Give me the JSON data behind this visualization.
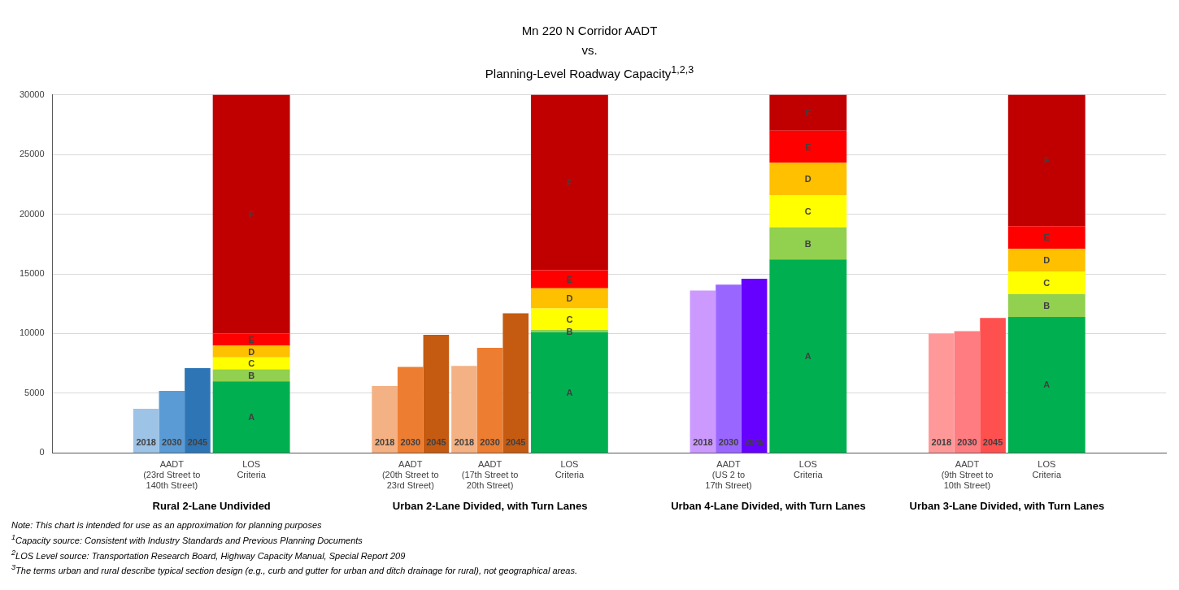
{
  "chart_data": {
    "type": "bar",
    "title": "Mn 220 N Corridor AADT\nvs.\nPlanning-Level Roadway Capacity$^{1,2,3}$",
    "categories": [
      null,
      "AADT\n(23rd Street to\n140th Street)",
      "LOS\nCriteria",
      null,
      "AADT\n(20th Street to\n23rd Street)",
      "AADT\n(17th Street to\n20th Street)",
      "LOS\nCriteria",
      null,
      "AADT\n(US 2 to\n17th Street)",
      "LOS\nCriteria",
      null,
      "AADT\n(9th Street to\n10th Street)",
      "LOS\nCriteria",
      null
    ],
    "series": [
      {
        "name": "2018",
        "values": [
          null,
          3700,
          null,
          null,
          5600,
          7300,
          null,
          null,
          13600,
          null,
          null,
          10000,
          null,
          null
        ],
        "colors": [
          null,
          "#9dc3e6",
          null,
          null,
          "#f4b183",
          "#f4b183",
          null,
          null,
          "#cc99ff",
          null,
          null,
          "#ff9999",
          null,
          null
        ]
      },
      {
        "name": "2030",
        "values": [
          null,
          5200,
          null,
          null,
          7200,
          8800,
          null,
          null,
          14100,
          null,
          null,
          10200,
          null,
          null
        ],
        "colors": [
          null,
          "#5b9bd5",
          null,
          null,
          "#ed7d31",
          "#ed7d31",
          null,
          null,
          "#9966ff",
          null,
          null,
          "#ff7c80",
          null,
          null
        ]
      },
      {
        "name": "2045",
        "values": [
          null,
          7100,
          null,
          null,
          9900,
          11700,
          null,
          null,
          14600,
          null,
          null,
          11300,
          null,
          null
        ],
        "colors": [
          null,
          "#2e75b6",
          null,
          null,
          "#c55a11",
          "#c55a11",
          null,
          null,
          "#6600ff",
          null,
          null,
          "#ff5050",
          null,
          null
        ]
      },
      {
        "name": "A",
        "color": "#00b050",
        "values": [
          null,
          null,
          6000,
          null,
          null,
          null,
          10100,
          null,
          null,
          16200,
          null,
          null,
          11400,
          null
        ],
        "base": [
          null,
          null,
          0,
          null,
          null,
          null,
          0,
          null,
          null,
          0,
          null,
          null,
          0,
          null
        ]
      },
      {
        "name": "B",
        "color": "#92d050",
        "values": [
          null,
          null,
          1000,
          null,
          null,
          null,
          200,
          null,
          null,
          2700,
          null,
          null,
          1900,
          null
        ],
        "base": [
          null,
          null,
          6000,
          null,
          null,
          null,
          10100,
          null,
          null,
          16200,
          null,
          null,
          11400,
          null
        ]
      },
      {
        "name": "C",
        "color": "#ffff00",
        "values": [
          null,
          null,
          1000,
          null,
          null,
          null,
          1800,
          null,
          null,
          2700,
          null,
          null,
          1900,
          null
        ],
        "base": [
          null,
          null,
          7000,
          null,
          null,
          null,
          10300,
          null,
          null,
          18900,
          null,
          null,
          13300,
          null
        ]
      },
      {
        "name": "D",
        "color": "#ffc000",
        "values": [
          null,
          null,
          1000,
          null,
          null,
          null,
          1700,
          null,
          null,
          2700,
          null,
          null,
          1900,
          null
        ],
        "base": [
          null,
          null,
          8000,
          null,
          null,
          null,
          12100,
          null,
          null,
          21600,
          null,
          null,
          15200,
          null
        ]
      },
      {
        "name": "E",
        "color": "#ff0000",
        "values": [
          null,
          null,
          1000,
          null,
          null,
          null,
          1500,
          null,
          null,
          2700,
          null,
          null,
          1900,
          null
        ],
        "base": [
          null,
          null,
          9000,
          null,
          null,
          null,
          13800,
          null,
          null,
          24300,
          null,
          null,
          17100,
          null
        ]
      },
      {
        "name": "F",
        "color": "#c00000",
        "values": [
          null,
          null,
          20000,
          null,
          null,
          null,
          14700,
          null,
          null,
          3000,
          null,
          null,
          11000,
          null
        ],
        "base": [
          null,
          null,
          10000,
          null,
          null,
          null,
          15300,
          null,
          null,
          27000,
          null,
          null,
          19000,
          null
        ]
      }
    ],
    "ylim": [
      0,
      30000
    ],
    "yticks": [
      0,
      5000,
      10000,
      15000,
      20000,
      25000,
      30000
    ],
    "grid": "y",
    "legend": false,
    "annotations": [
      "Rural 2-Lane Undivided",
      "Urban 2-Lane Divided, with Turn Lanes",
      "Urban 4-Lane Divided, with Turn Lanes",
      "Urban 3-Lane Divided, with Turn Lanes",
      "Note: This chart is intended for use as an approximation for planning purposes",
      "$^{1}$Capacity source: Consistent with Industry Standards and Previous Planning Documents",
      "$^{2}$LOS Level source: Transportation Research Board, Highway Capacity Manual, Special Report 209",
      "$^{3}$The terms urban and rural describe typical section design (e.g., curb and gutter for urban and ditch drainage for rural), not geographical areas."
    ]
  }
}
